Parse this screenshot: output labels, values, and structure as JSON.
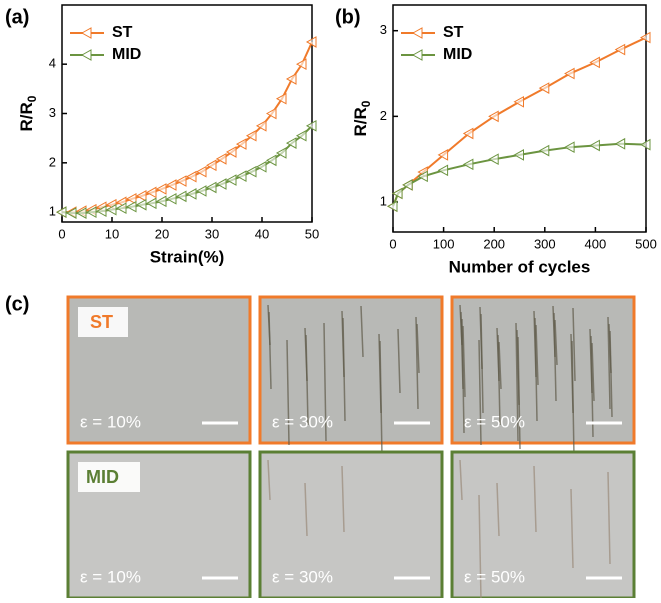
{
  "chart_data": [
    {
      "type": "line",
      "panel_label": "(a)",
      "xlabel": "Strain(%)",
      "ylabel": "R/R",
      "ylabel_sub": "0",
      "x": [
        0,
        2,
        4,
        6,
        8,
        10,
        12,
        14,
        16,
        18,
        20,
        22,
        24,
        26,
        28,
        30,
        32,
        34,
        36,
        38,
        40,
        42,
        44,
        46,
        48,
        50
      ],
      "series": [
        {
          "name": "ST",
          "color": "#f07a2a",
          "values": [
            1.0,
            1.0,
            1.02,
            1.05,
            1.1,
            1.15,
            1.2,
            1.27,
            1.33,
            1.4,
            1.47,
            1.55,
            1.63,
            1.72,
            1.82,
            1.95,
            2.08,
            2.22,
            2.38,
            2.55,
            2.75,
            3.0,
            3.3,
            3.7,
            4.0,
            4.45
          ]
        },
        {
          "name": "MID",
          "color": "#6b9440",
          "values": [
            1.0,
            0.98,
            0.98,
            1.0,
            1.02,
            1.05,
            1.08,
            1.11,
            1.15,
            1.18,
            1.22,
            1.27,
            1.32,
            1.37,
            1.43,
            1.5,
            1.57,
            1.65,
            1.73,
            1.82,
            1.92,
            2.05,
            2.2,
            2.4,
            2.55,
            2.75
          ]
        }
      ],
      "xlim": [
        0,
        50
      ],
      "xticks": [
        0,
        10,
        20,
        30,
        40,
        50
      ],
      "ylim": [
        0.8,
        5.2
      ],
      "yticks": [
        1,
        2,
        3,
        4
      ],
      "legend": "upper-left"
    },
    {
      "type": "line",
      "panel_label": "(b)",
      "xlabel": "Number of cycles",
      "ylabel": "R/R",
      "ylabel_sub": "0",
      "x": [
        0,
        10,
        30,
        60,
        100,
        150,
        200,
        250,
        300,
        350,
        400,
        450,
        500
      ],
      "series": [
        {
          "name": "ST",
          "color": "#f07a2a",
          "values": [
            0.95,
            1.1,
            1.2,
            1.35,
            1.55,
            1.8,
            2.0,
            2.17,
            2.33,
            2.5,
            2.63,
            2.78,
            2.92
          ]
        },
        {
          "name": "MID",
          "color": "#6b9440",
          "values": [
            0.95,
            1.1,
            1.2,
            1.3,
            1.37,
            1.44,
            1.5,
            1.55,
            1.6,
            1.64,
            1.66,
            1.68,
            1.67
          ]
        }
      ],
      "xlim": [
        0,
        500
      ],
      "xticks": [
        0,
        100,
        200,
        300,
        400,
        500
      ],
      "ylim": [
        0.65,
        3.3
      ],
      "yticks": [
        1,
        2,
        3
      ],
      "legend": "upper-left"
    }
  ],
  "images": {
    "panel_label": "(c)",
    "rows": [
      {
        "name": "ST",
        "color": "#f07a2a",
        "strains": [
          "ε = 10%",
          "ε = 30%",
          "ε = 50%"
        ]
      },
      {
        "name": "MID",
        "color": "#5b7f34",
        "strains": [
          "ε = 10%",
          "ε = 30%",
          "ε = 50%"
        ]
      }
    ]
  }
}
